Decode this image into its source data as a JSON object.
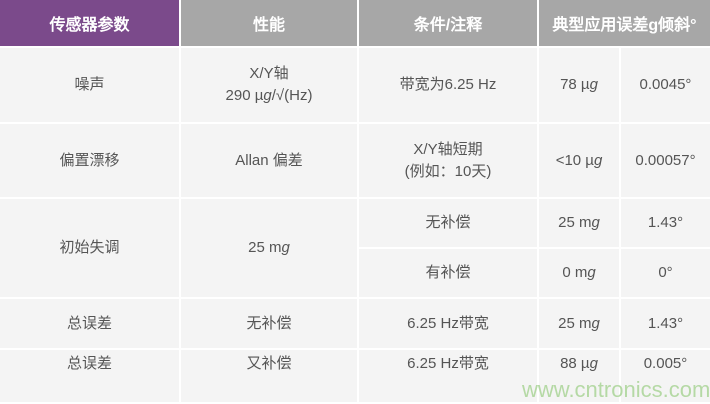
{
  "header": [
    "传感器参数",
    "性能",
    "条件/注释",
    "典型应用误差g倾斜°"
  ],
  "rows": [
    {
      "param": "噪声",
      "perf1": "X/Y轴",
      "perf2a": "290 µ",
      "perf2b": "g",
      "perf2c": "/√(Hz)",
      "cond1": "带宽为6.25 Hz",
      "cond2": "",
      "err_a": "78 µ",
      "err_b": "g",
      "tilt": "0.0045°"
    },
    {
      "param": "偏置漂移",
      "perf1": "Allan 偏差",
      "cond1": "X/Y轴短期",
      "cond2": "(例如：10天)",
      "err_a": "<10 µ",
      "err_b": "g",
      "tilt": "0.00057°"
    },
    {
      "param": "初始失调",
      "perf1a": "25 m",
      "perf1b": "g",
      "cond1": "无补偿",
      "err_a": "25 m",
      "err_b": "g",
      "tilt": "1.43°"
    },
    {
      "cond1": "有补偿",
      "err_a": "0 m",
      "err_b": "g",
      "tilt": "0°"
    },
    {
      "param": "总误差",
      "perf1": "无补偿",
      "cond1": "6.25 Hz带宽",
      "err_a": "25 m",
      "err_b": "g",
      "tilt": "1.43°"
    },
    {
      "param": "总误差",
      "perf1": "又补偿",
      "cond1": "6.25 Hz带宽",
      "err_a": "88 µ",
      "err_b": "g",
      "tilt": "0.005°"
    }
  ],
  "watermark": "www.cntronics.com",
  "colors": {
    "header_first": "#7b4a8b",
    "header": "#a7a7a7",
    "cell": "#f4f4f4",
    "text": "#555555"
  }
}
